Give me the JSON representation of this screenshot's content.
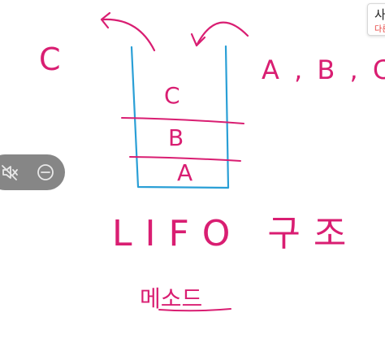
{
  "board": {
    "left_label": "C",
    "right_label": "A , B , C",
    "stack_items": [
      "C",
      "B",
      "A"
    ],
    "structure_label": "LIFO 구조",
    "method_label": "메소드"
  },
  "notice": {
    "title": "사",
    "subtitle": "다른"
  },
  "colors": {
    "ink_pink": "#d91e72",
    "ink_blue": "#2a9fd6",
    "control_bg": "#7a7a7a"
  },
  "icons": {
    "mute": "speaker-muted-icon",
    "minus": "minus-circle-icon"
  }
}
